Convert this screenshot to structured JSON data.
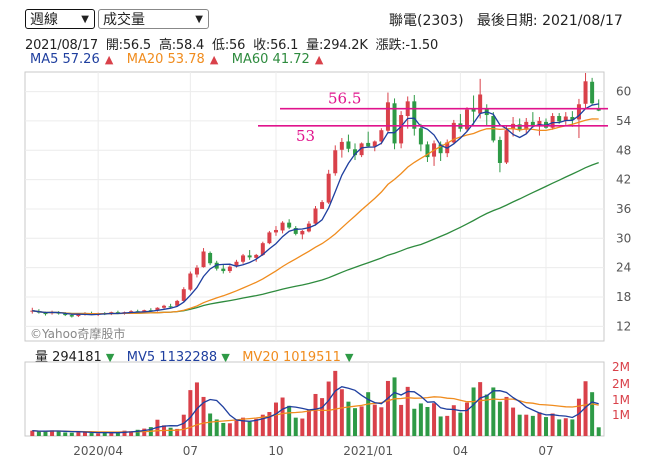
{
  "controls": {
    "period": "週線",
    "indicator": "成交量"
  },
  "header": {
    "stock": "聯電(2303)",
    "latest_date_label": "最後日期:",
    "latest_date": "2021/08/17"
  },
  "ohlc": {
    "date": "2021/08/17",
    "open": "開:56.5",
    "high": "高:58.4",
    "low": "低:56",
    "close": "收:56.1",
    "volume": "量:294.2K",
    "change": "漲跌:-1.50"
  },
  "ma": [
    {
      "label": "MA5 57.26",
      "arrow": "▲",
      "color": "#1f3f9f"
    },
    {
      "label": "MA20 53.78",
      "arrow": "▲",
      "color": "#f08c1e"
    },
    {
      "label": "MA60 41.72",
      "arrow": "▲",
      "color": "#2e8b3e"
    }
  ],
  "volume_header": [
    {
      "label": "量 294181",
      "arrow": "▼",
      "color": "#222222"
    },
    {
      "label": "MV5 1132288",
      "arrow": "▼",
      "color": "#1f3f9f"
    },
    {
      "label": "MV20 1019511",
      "arrow": "▼",
      "color": "#f08c1e"
    }
  ],
  "watermark": "©Yahoo奇摩股市",
  "colors": {
    "up": "#d9414a",
    "down": "#2e9a46",
    "ma5": "#1f3f9f",
    "ma20": "#f08c1e",
    "ma60": "#2e8b3e",
    "annotation": "#e0138c",
    "axis_text": "#555555"
  },
  "chart_data": [
    {
      "type": "candlestick",
      "title": "",
      "x_tick_labels": [
        "2020/04",
        "07",
        "10",
        "2021/01",
        "04",
        "07"
      ],
      "y_tick_labels": [
        "12",
        "18",
        "24",
        "30",
        "36",
        "42",
        "48",
        "54",
        "60"
      ],
      "ylim": [
        9,
        64
      ],
      "y_axis_side": "right",
      "grid": true,
      "horizontal_annotations": [
        {
          "value": 56.5,
          "label": "56.5"
        },
        {
          "value": 53,
          "label": "53"
        }
      ],
      "series_ohlc": [
        [
          15.2,
          15.8,
          14.6,
          15.2
        ],
        [
          15.1,
          15.5,
          14.6,
          14.8
        ],
        [
          14.8,
          15.0,
          14.2,
          14.5
        ],
        [
          14.7,
          15.2,
          14.4,
          14.9
        ],
        [
          14.8,
          15.1,
          14.4,
          14.7
        ],
        [
          14.6,
          14.9,
          14.1,
          14.3
        ],
        [
          14.3,
          14.6,
          13.8,
          14.0
        ],
        [
          14.1,
          14.6,
          13.9,
          14.5
        ],
        [
          14.5,
          14.9,
          14.2,
          14.7
        ],
        [
          14.6,
          15.0,
          14.3,
          14.4
        ],
        [
          14.4,
          14.8,
          14.1,
          14.6
        ],
        [
          14.6,
          14.9,
          14.3,
          14.5
        ],
        [
          14.5,
          15.0,
          14.3,
          14.9
        ],
        [
          14.9,
          15.2,
          14.5,
          14.7
        ],
        [
          14.6,
          15.0,
          14.4,
          14.9
        ],
        [
          14.9,
          15.3,
          14.6,
          15.1
        ],
        [
          15.1,
          15.4,
          14.7,
          14.9
        ],
        [
          14.9,
          15.4,
          14.7,
          15.3
        ],
        [
          15.3,
          15.7,
          15.0,
          15.2
        ],
        [
          15.2,
          15.9,
          15.0,
          15.8
        ],
        [
          15.8,
          16.4,
          15.5,
          16.2
        ],
        [
          16.1,
          16.6,
          15.7,
          16.0
        ],
        [
          16.2,
          17.4,
          16.0,
          17.2
        ],
        [
          17.2,
          20.0,
          17.0,
          19.6
        ],
        [
          19.5,
          23.2,
          19.2,
          22.8
        ],
        [
          22.6,
          24.5,
          22.0,
          24.0
        ],
        [
          24.1,
          28.0,
          24.0,
          27.3
        ],
        [
          27.0,
          27.3,
          24.5,
          24.9
        ],
        [
          25.0,
          25.4,
          23.4,
          23.8
        ],
        [
          23.8,
          24.6,
          22.8,
          23.3
        ],
        [
          23.3,
          24.5,
          22.9,
          24.2
        ],
        [
          24.3,
          25.6,
          24.0,
          25.2
        ],
        [
          25.2,
          26.8,
          24.8,
          26.5
        ],
        [
          26.5,
          27.6,
          25.6,
          26.1
        ],
        [
          26.0,
          26.8,
          25.2,
          26.6
        ],
        [
          26.6,
          29.3,
          26.4,
          29.0
        ],
        [
          29.0,
          31.5,
          28.8,
          31.2
        ],
        [
          31.2,
          32.5,
          30.5,
          31.7
        ],
        [
          31.6,
          33.5,
          31.0,
          33.2
        ],
        [
          33.2,
          33.9,
          31.9,
          32.2
        ],
        [
          32.1,
          32.5,
          30.6,
          30.9
        ],
        [
          30.8,
          31.7,
          29.8,
          31.5
        ],
        [
          31.4,
          33.5,
          31.2,
          33.0
        ],
        [
          33.0,
          36.6,
          32.6,
          36.1
        ],
        [
          36.0,
          37.8,
          36.3,
          37.4
        ],
        [
          37.3,
          44.0,
          37.0,
          43.2
        ],
        [
          43.3,
          49.0,
          42.8,
          48.0
        ],
        [
          48.1,
          50.5,
          46.5,
          49.7
        ],
        [
          49.8,
          51.2,
          47.6,
          48.3
        ],
        [
          48.2,
          49.4,
          46.0,
          47.0
        ],
        [
          47.0,
          49.6,
          46.6,
          49.4
        ],
        [
          49.5,
          51.8,
          48.6,
          48.8
        ],
        [
          48.8,
          50.0,
          47.8,
          49.8
        ],
        [
          49.8,
          52.5,
          49.2,
          52.1
        ],
        [
          52.0,
          59.8,
          51.6,
          57.8
        ],
        [
          57.6,
          58.6,
          48.2,
          49.4
        ],
        [
          49.4,
          56.0,
          48.4,
          55.2
        ],
        [
          55.0,
          59.0,
          52.4,
          58.0
        ],
        [
          58.0,
          59.3,
          51.0,
          52.4
        ],
        [
          52.5,
          53.4,
          47.8,
          49.2
        ],
        [
          49.2,
          49.8,
          45.6,
          46.6
        ],
        [
          46.7,
          50.0,
          44.8,
          49.4
        ],
        [
          49.2,
          49.8,
          45.8,
          47.4
        ],
        [
          47.4,
          50.2,
          46.6,
          49.6
        ],
        [
          49.6,
          54.2,
          49.2,
          53.6
        ],
        [
          53.5,
          55.4,
          51.8,
          52.4
        ],
        [
          52.3,
          56.8,
          51.7,
          56.3
        ],
        [
          56.5,
          59.2,
          53.2,
          55.9
        ],
        [
          55.5,
          62.6,
          54.5,
          59.4
        ],
        [
          56.5,
          57.4,
          53.0,
          55.2
        ],
        [
          55.0,
          55.8,
          49.6,
          50.0
        ],
        [
          50.1,
          50.8,
          43.5,
          45.4
        ],
        [
          45.5,
          53.0,
          45.2,
          52.1
        ],
        [
          52.3,
          54.8,
          50.8,
          53.4
        ],
        [
          53.3,
          54.5,
          51.8,
          52.1
        ],
        [
          52.2,
          54.6,
          51.4,
          53.8
        ],
        [
          53.8,
          55.8,
          52.6,
          52.9
        ],
        [
          52.9,
          54.8,
          51.0,
          54.0
        ],
        [
          53.8,
          54.5,
          52.4,
          52.6
        ],
        [
          52.6,
          55.6,
          52.2,
          55.0
        ],
        [
          55.0,
          55.6,
          53.4,
          53.9
        ],
        [
          54.0,
          55.8,
          53.2,
          54.9
        ],
        [
          54.8,
          56.0,
          52.8,
          54.2
        ],
        [
          54.3,
          58.5,
          50.5,
          57.4
        ],
        [
          57.5,
          63.8,
          56.5,
          62.1
        ],
        [
          62.0,
          62.8,
          57.2,
          57.6
        ],
        [
          56.5,
          58.4,
          56.0,
          56.1
        ]
      ],
      "ma5_last": 57.26,
      "ma20_last": 53.78,
      "ma60_last": 41.72
    },
    {
      "type": "bar",
      "title": "Volume",
      "y_tick_labels": [
        "1M",
        "1M",
        "2M",
        "2M"
      ],
      "ylim": [
        0,
        2500000
      ],
      "y_axis_side": "right",
      "volumes": [
        180000,
        150000,
        160000,
        190000,
        170000,
        120000,
        110000,
        130000,
        140000,
        100000,
        90000,
        110000,
        120000,
        130000,
        180000,
        160000,
        210000,
        250000,
        300000,
        550000,
        360000,
        280000,
        240000,
        720000,
        1550000,
        1810000,
        1320000,
        760000,
        560000,
        440000,
        430000,
        520000,
        620000,
        480000,
        580000,
        720000,
        810000,
        1130000,
        1300000,
        1020000,
        620000,
        590000,
        880000,
        1420000,
        1280000,
        1840000,
        2200000,
        1580000,
        1160000,
        940000,
        1000000,
        1480000,
        1060000,
        970000,
        1860000,
        1980000,
        1050000,
        1660000,
        920000,
        1100000,
        980000,
        1110000,
        660000,
        680000,
        1040000,
        790000,
        1130000,
        1640000,
        1820000,
        1400000,
        1640000,
        1160000,
        1320000,
        960000,
        720000,
        720000,
        680000,
        800000,
        640000,
        760000,
        560000,
        600000,
        560000,
        1260000,
        1850000,
        1480000,
        294181
      ],
      "mv5_last": 1132288,
      "mv20_last": 1019511
    }
  ]
}
